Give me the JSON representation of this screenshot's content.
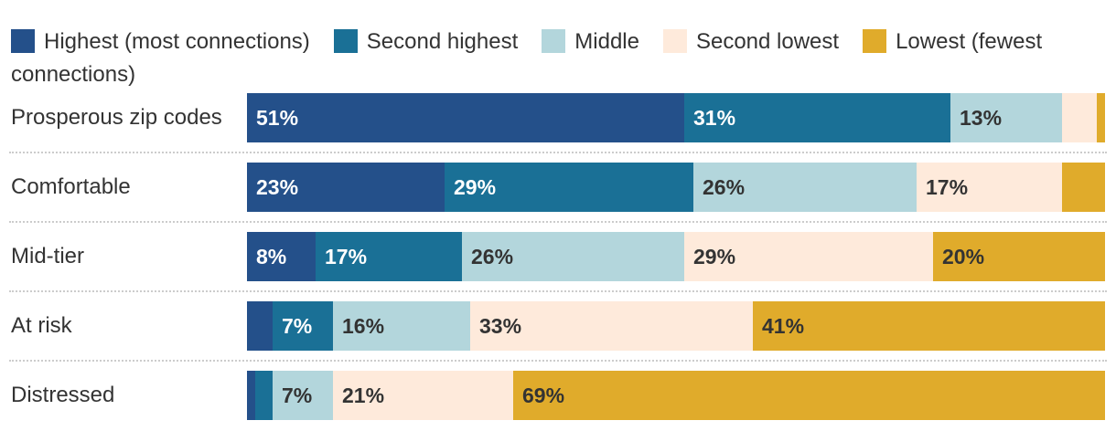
{
  "legend": [
    {
      "label": "Highest (most connections)",
      "color": "#24508a"
    },
    {
      "label": "Second highest",
      "color": "#1a7096"
    },
    {
      "label": "Middle",
      "color": "#b3d6dc"
    },
    {
      "label": "Second lowest",
      "color": "#feeadb"
    },
    {
      "label": "Lowest (fewest connections)",
      "color": "#e0ab2b"
    }
  ],
  "chart_data": {
    "type": "bar",
    "orientation": "horizontal",
    "stacked": true,
    "xlim": [
      0,
      100
    ],
    "categories": [
      "Prosperous zip codes",
      "Comfortable",
      "Mid-tier",
      "At risk",
      "Distressed"
    ],
    "series": [
      {
        "name": "Highest (most connections)",
        "color": "#24508a",
        "values": [
          51,
          23,
          8,
          3,
          1
        ],
        "labels": [
          "51%",
          "23%",
          "8%",
          "",
          ""
        ],
        "label_color": "#ffffff"
      },
      {
        "name": "Second highest",
        "color": "#1a7096",
        "values": [
          31,
          29,
          17,
          7,
          2
        ],
        "labels": [
          "31%",
          "29%",
          "17%",
          "7%",
          ""
        ],
        "label_color": "#ffffff"
      },
      {
        "name": "Middle",
        "color": "#b3d6dc",
        "values": [
          13,
          26,
          26,
          16,
          7
        ],
        "labels": [
          "13%",
          "26%",
          "26%",
          "16%",
          "7%"
        ],
        "label_color": "#333333"
      },
      {
        "name": "Second lowest",
        "color": "#feeadb",
        "values": [
          4,
          17,
          29,
          33,
          21
        ],
        "labels": [
          "",
          "17%",
          "29%",
          "33%",
          "21%"
        ],
        "label_color": "#333333"
      },
      {
        "name": "Lowest (fewest connections)",
        "color": "#e0ab2b",
        "values": [
          1,
          5,
          20,
          41,
          69
        ],
        "labels": [
          "",
          "",
          "20%",
          "41%",
          "69%"
        ],
        "label_color": "#333333"
      }
    ]
  }
}
